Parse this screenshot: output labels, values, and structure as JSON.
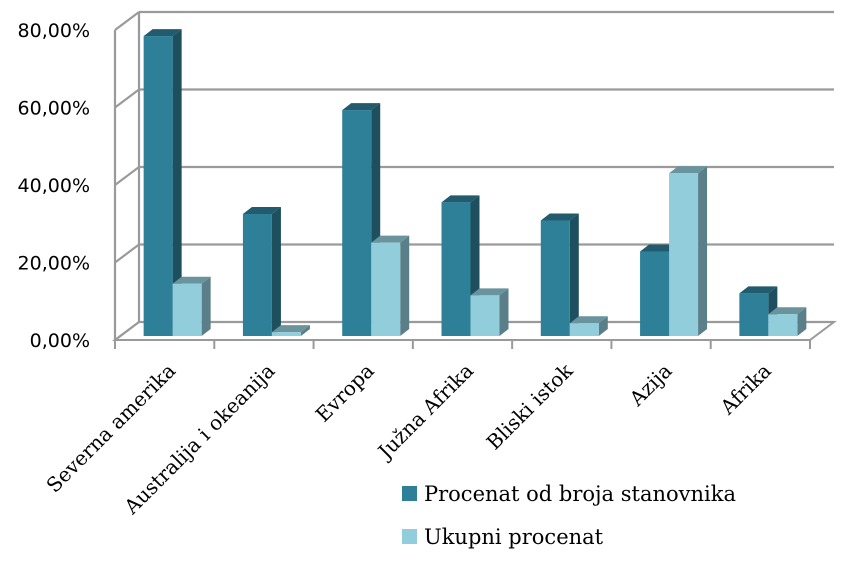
{
  "chart_data": {
    "type": "bar",
    "categories": [
      "Severna amerika",
      "Australija i okeanija",
      "Evropa",
      "Južna Afrika",
      "Bliski istok",
      "Azija",
      "Afrika"
    ],
    "series": [
      {
        "name": "Procenat od broja stanovnika",
        "values": [
          77.4,
          31.5,
          58.3,
          34.5,
          29.8,
          21.8,
          11.0
        ],
        "color": "#2E7F98"
      },
      {
        "name": "Ukupni procenat",
        "values": [
          13.5,
          1.0,
          24.1,
          10.5,
          3.3,
          42.0,
          5.6
        ],
        "color": "#92CDDC"
      }
    ],
    "yticks": [
      "0,00%",
      "20,00%",
      "40,00%",
      "60,00%",
      "80,00%"
    ],
    "ylim": [
      0,
      80
    ],
    "grid": true,
    "legend_position": "bottom-right",
    "style": "3d-column"
  }
}
